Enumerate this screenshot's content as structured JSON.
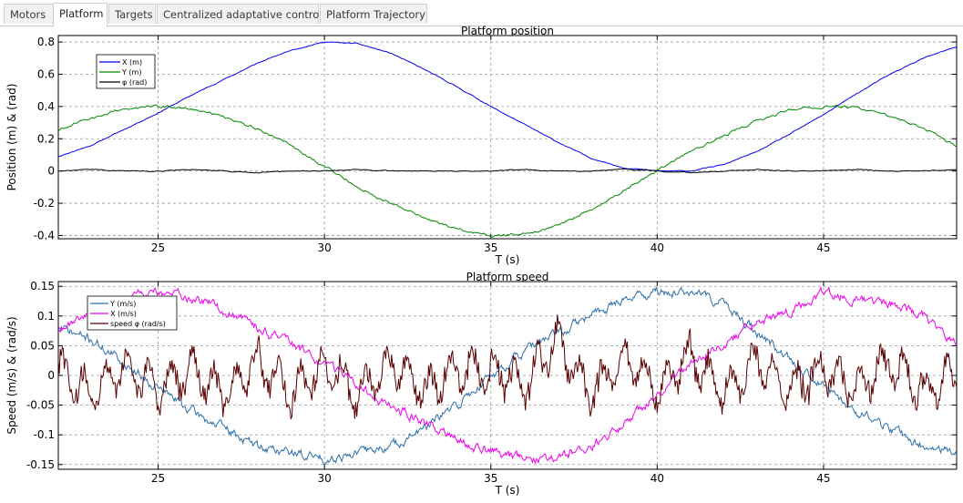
{
  "tabs": [
    {
      "label": "Motors",
      "active": false
    },
    {
      "label": "Platform",
      "active": true
    },
    {
      "label": "Targets",
      "active": false
    },
    {
      "label": "Centralized adaptative control",
      "active": false
    },
    {
      "label": "Platform Trajectory",
      "active": false
    }
  ],
  "chart_data": [
    {
      "type": "line",
      "title": "Platform position",
      "xlabel": "T (s)",
      "ylabel": "Position (m) & (rad)",
      "xlim": [
        22,
        49
      ],
      "ylim": [
        -0.42,
        0.84
      ],
      "xticks": [
        25,
        30,
        35,
        40,
        45
      ],
      "yticks": [
        0.8,
        0.6,
        0.4,
        0.2,
        0,
        -0.2,
        -0.4
      ],
      "ytick_labels": [
        "0.8",
        "0.6",
        "0.4",
        "0.2",
        "0",
        "-0.2",
        "-0.4"
      ],
      "grid": true,
      "legend_position": "top-left",
      "series": [
        {
          "name": "X (m)",
          "color": "#0000ee",
          "x": [
            22,
            23,
            24,
            25,
            26,
            27,
            28,
            29,
            30,
            31,
            32,
            33,
            34,
            35,
            36,
            37,
            38,
            39,
            40,
            41,
            42,
            43,
            44,
            45,
            46,
            47,
            48,
            49
          ],
          "values": [
            0.09,
            0.16,
            0.26,
            0.36,
            0.47,
            0.57,
            0.67,
            0.75,
            0.8,
            0.79,
            0.73,
            0.63,
            0.52,
            0.4,
            0.29,
            0.18,
            0.08,
            0.02,
            0.0,
            0.0,
            0.04,
            0.12,
            0.23,
            0.35,
            0.48,
            0.6,
            0.7,
            0.77
          ]
        },
        {
          "name": "Y (m)",
          "color": "#008800",
          "x": [
            22,
            23,
            24,
            25,
            26,
            27,
            28,
            29,
            30,
            31,
            32,
            33,
            34,
            35,
            36,
            37,
            38,
            39,
            40,
            41,
            42,
            43,
            44,
            45,
            46,
            47,
            48,
            49
          ],
          "values": [
            0.25,
            0.33,
            0.39,
            0.4,
            0.39,
            0.33,
            0.26,
            0.16,
            0.03,
            -0.1,
            -0.2,
            -0.29,
            -0.36,
            -0.4,
            -0.39,
            -0.34,
            -0.24,
            -0.12,
            0.0,
            0.12,
            0.22,
            0.31,
            0.38,
            0.4,
            0.39,
            0.34,
            0.27,
            0.15
          ]
        },
        {
          "name": "φ (rad)",
          "color": "#000000",
          "x": [
            22,
            23,
            24,
            25,
            26,
            27,
            28,
            29,
            30,
            31,
            32,
            33,
            34,
            35,
            36,
            37,
            38,
            39,
            40,
            41,
            42,
            43,
            44,
            45,
            46,
            47,
            48,
            49
          ],
          "values": [
            0.0,
            0.01,
            0.0,
            0.0,
            0.01,
            0.0,
            -0.01,
            0.0,
            0.0,
            0.01,
            0.0,
            0.0,
            0.0,
            0.0,
            0.01,
            0.0,
            0.0,
            0.01,
            0.0,
            -0.01,
            0.0,
            0.01,
            0.0,
            0.0,
            0.01,
            0.0,
            0.0,
            0.01
          ]
        }
      ]
    },
    {
      "type": "line",
      "title": "Platform speed",
      "xlabel": "T (s)",
      "ylabel": "Speed (m/s) & (rad/s)",
      "xlim": [
        22,
        49
      ],
      "ylim": [
        -0.158,
        0.158
      ],
      "xticks": [
        25,
        30,
        35,
        40,
        45
      ],
      "yticks": [
        0.15,
        0.1,
        0.05,
        0,
        -0.05,
        -0.1,
        -0.15
      ],
      "ytick_labels": [
        "0.15",
        "0.1",
        "0.05",
        "0",
        "-0.05",
        "-0.1",
        "-0.15"
      ],
      "grid": true,
      "legend_position": "top-left",
      "series": [
        {
          "name": "Y (m/s)",
          "color": "#2e6fa8",
          "x": [
            22,
            23,
            24,
            25,
            26,
            27,
            28,
            29,
            30,
            31,
            32,
            33,
            34,
            35,
            36,
            37,
            38,
            39,
            40,
            41,
            42,
            43,
            44,
            45,
            46,
            47,
            48,
            49
          ],
          "values": [
            0.08,
            0.06,
            0.02,
            -0.02,
            -0.06,
            -0.09,
            -0.12,
            -0.13,
            -0.14,
            -0.13,
            -0.12,
            -0.09,
            -0.05,
            0.0,
            0.04,
            0.07,
            0.1,
            0.13,
            0.14,
            0.14,
            0.12,
            0.07,
            0.03,
            -0.02,
            -0.06,
            -0.09,
            -0.12,
            -0.13
          ]
        },
        {
          "name": "X (m/s)",
          "color": "#ee00ee",
          "x": [
            22,
            23,
            24,
            25,
            26,
            27,
            28,
            29,
            30,
            31,
            32,
            33,
            34,
            35,
            36,
            37,
            38,
            39,
            40,
            41,
            42,
            43,
            44,
            45,
            46,
            47,
            48,
            49
          ],
          "values": [
            0.08,
            0.11,
            0.13,
            0.14,
            0.13,
            0.11,
            0.08,
            0.05,
            0.02,
            -0.02,
            -0.05,
            -0.08,
            -0.11,
            -0.13,
            -0.14,
            -0.14,
            -0.12,
            -0.08,
            -0.03,
            0.02,
            0.05,
            0.09,
            0.11,
            0.14,
            0.13,
            0.12,
            0.1,
            0.05
          ]
        },
        {
          "name": "speed φ (rad/s)",
          "color": "#5a0000",
          "x": [
            22,
            23,
            24,
            25,
            26,
            27,
            28,
            29,
            30,
            31,
            32,
            33,
            34,
            35,
            36,
            37,
            38,
            39,
            40,
            41,
            42,
            43,
            44,
            45,
            46,
            47,
            48,
            49
          ],
          "values": [
            0.01,
            -0.05,
            0.03,
            -0.04,
            0.02,
            -0.05,
            0.04,
            -0.05,
            0.03,
            -0.05,
            0.04,
            -0.04,
            0.02,
            0.01,
            -0.03,
            0.1,
            -0.06,
            0.05,
            -0.04,
            0.06,
            -0.05,
            0.03,
            -0.04,
            0.02,
            -0.03,
            0.04,
            -0.05,
            0.01
          ]
        }
      ]
    }
  ]
}
